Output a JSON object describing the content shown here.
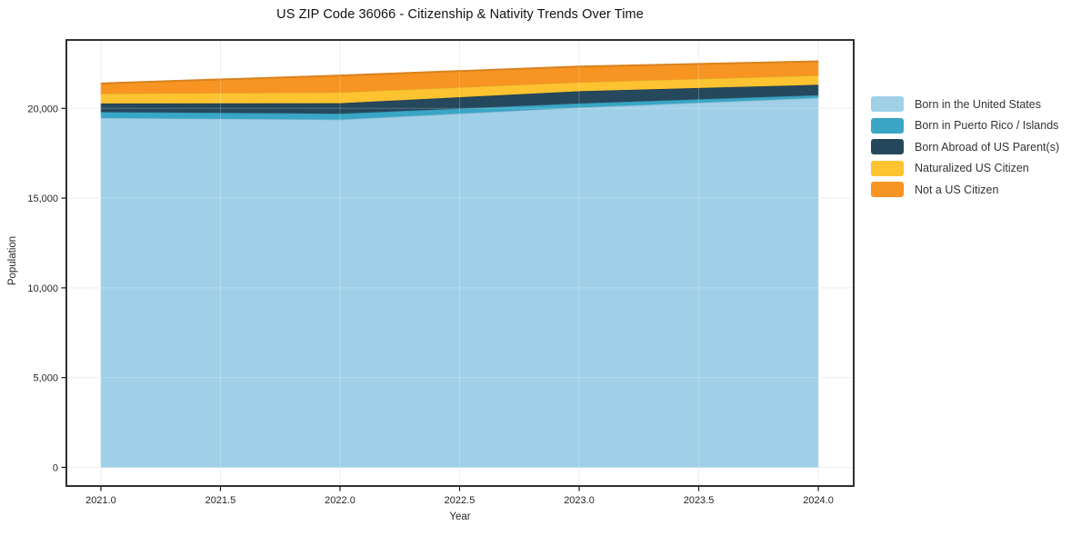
{
  "title": "US ZIP Code 36066 - Citizenship & Nativity Trends Over Time",
  "chart_data": {
    "type": "area",
    "stacked": true,
    "title": "US ZIP Code 36066 - Citizenship & Nativity Trends Over Time",
    "xlabel": "Year",
    "ylabel": "Population",
    "x": [
      2021,
      2022,
      2023,
      2024
    ],
    "series": [
      {
        "name": "Born in the United States",
        "color": "#a0d0e8",
        "values": [
          19480,
          19390,
          20060,
          20600
        ]
      },
      {
        "name": "Born in Puerto Rico / Islands",
        "color": "#39a6c6",
        "values": [
          330,
          330,
          230,
          150
        ]
      },
      {
        "name": "Born Abroad of US Parent(s)",
        "color": "#26485c",
        "values": [
          480,
          580,
          680,
          580
        ]
      },
      {
        "name": "Naturalized US Citizen",
        "color": "#fdc330",
        "values": [
          550,
          610,
          500,
          530
        ]
      },
      {
        "name": "Not a US Citizen",
        "color": "#f79422",
        "values": [
          550,
          920,
          860,
          760
        ]
      }
    ],
    "totals": [
      21390,
      21830,
      22330,
      22620
    ],
    "xticks": [
      2021.0,
      2021.5,
      2022.0,
      2022.5,
      2023.0,
      2023.5,
      2024.0
    ],
    "xtick_labels": [
      "2021.0",
      "2021.5",
      "2022.0",
      "2022.5",
      "2023.0",
      "2023.5",
      "2024.0"
    ],
    "yticks": [
      0,
      5000,
      10000,
      15000,
      20000
    ],
    "ytick_labels": [
      "0",
      "5,000",
      "10,000",
      "15,000",
      "20,000"
    ],
    "xlim": [
      2020.8556,
      2024.1481
    ],
    "ylim": [
      -1040,
      23810
    ],
    "grid": true,
    "legend_position": "outside-right-top",
    "colors": {
      "background": "#ffffff",
      "frame": "#1a1a1a",
      "gridline": "#e9e9e9",
      "tick_text": "#262626"
    }
  }
}
